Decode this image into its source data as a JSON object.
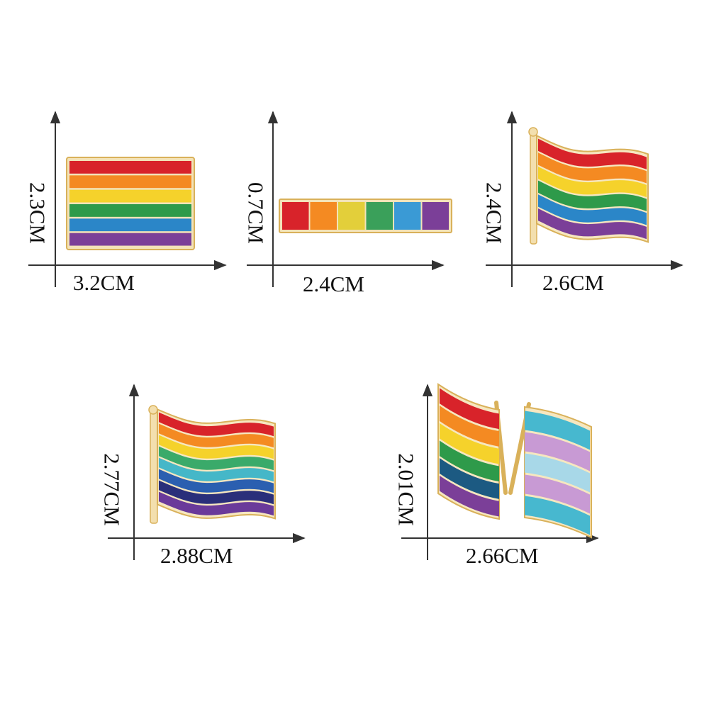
{
  "pins": [
    {
      "name": "rectangular rainbow flag pin",
      "height_label": "2.3CM",
      "width_label": "3.2CM",
      "stripe_colors": [
        "#d8232a",
        "#f48a22",
        "#f5d22b",
        "#2e9a4a",
        "#2b86c8",
        "#7b3f98"
      ]
    },
    {
      "name": "rainbow bar pin",
      "height_label": "0.7CM",
      "width_label": "2.4CM",
      "segment_colors": [
        "#d8232a",
        "#f48a22",
        "#e3cf3a",
        "#3aa05a",
        "#3a9ad5",
        "#7b3f98"
      ]
    },
    {
      "name": "waving rainbow flag pin",
      "height_label": "2.4CM",
      "width_label": "2.6CM",
      "stripe_colors": [
        "#d8232a",
        "#f48a22",
        "#f5d22b",
        "#2e9a4a",
        "#2b86c8",
        "#7b3f98"
      ]
    },
    {
      "name": "waving eight-stripe rainbow flag pin",
      "height_label": "2.77CM",
      "width_label": "2.88CM",
      "stripe_colors": [
        "#d8232a",
        "#f48a22",
        "#f5d22b",
        "#3aaa6a",
        "#45b7c8",
        "#2b5fb0",
        "#2a2f7a",
        "#6a3a9a"
      ]
    },
    {
      "name": "crossed rainbow and transgender flags pin",
      "height_label": "2.01CM",
      "width_label": "2.66CM",
      "left_flag_colors": [
        "#d8232a",
        "#f48a22",
        "#f5d22b",
        "#2e9a4a",
        "#1c5a82",
        "#7b3f98"
      ],
      "right_flag_colors": [
        "#47b8cf",
        "#c89ad4",
        "#a8d8e8",
        "#c89ad4",
        "#47b8cf"
      ]
    }
  ],
  "colors": {
    "gold_rim": "#d9b15a",
    "arrow": "#333333",
    "text": "#111111"
  }
}
